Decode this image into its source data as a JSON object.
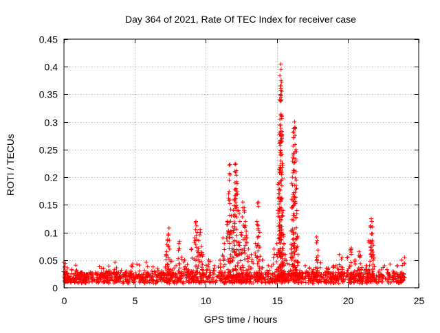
{
  "chart_data": {
    "type": "scatter",
    "title": "Day 364 of 2021, Rate Of TEC Index for receiver case",
    "xlabel": "GPS time / hours",
    "ylabel": "ROTI / TECUs",
    "xlim": [
      0,
      25
    ],
    "ylim": [
      0,
      0.45
    ],
    "xticks": [
      0,
      5,
      10,
      15,
      20,
      25
    ],
    "xtick_labels": [
      "0",
      "5",
      "10",
      "15",
      "20",
      "25"
    ],
    "yticks": [
      0,
      0.05,
      0.1,
      0.15,
      0.2,
      0.25,
      0.3,
      0.35,
      0.4,
      0.45
    ],
    "ytick_labels": [
      "0",
      "0.05",
      "0.1",
      "0.15",
      "0.2",
      "0.25",
      "0.3",
      "0.35",
      "0.4",
      "0.45"
    ],
    "grid": true,
    "marker": "+",
    "color": "#ff0000",
    "series": [
      {
        "name": "ROTI",
        "points": [
          [
            0.0,
            0.046
          ],
          [
            0.05,
            0.038
          ],
          [
            0.1,
            0.044
          ],
          [
            0.15,
            0.03
          ],
          [
            0.2,
            0.026
          ],
          [
            0.3,
            0.02
          ],
          [
            0.5,
            0.015
          ],
          [
            0.8,
            0.022
          ],
          [
            0.9,
            0.032
          ],
          [
            1.2,
            0.028
          ],
          [
            1.5,
            0.018
          ],
          [
            2.0,
            0.016
          ],
          [
            2.4,
            0.024
          ],
          [
            3.0,
            0.03
          ],
          [
            3.2,
            0.022
          ],
          [
            3.6,
            0.046
          ],
          [
            3.7,
            0.036
          ],
          [
            4.0,
            0.028
          ],
          [
            4.4,
            0.03
          ],
          [
            4.8,
            0.022
          ],
          [
            5.3,
            0.02
          ],
          [
            5.8,
            0.046
          ],
          [
            5.9,
            0.038
          ],
          [
            6.2,
            0.03
          ],
          [
            6.6,
            0.035
          ],
          [
            6.9,
            0.03
          ],
          [
            7.2,
            0.06
          ],
          [
            7.25,
            0.078
          ],
          [
            7.3,
            0.085
          ],
          [
            7.35,
            0.095
          ],
          [
            7.4,
            0.108
          ],
          [
            7.45,
            0.07
          ],
          [
            7.6,
            0.048
          ],
          [
            7.9,
            0.04
          ],
          [
            8.1,
            0.08
          ],
          [
            8.15,
            0.084
          ],
          [
            8.3,
            0.055
          ],
          [
            8.5,
            0.05
          ],
          [
            8.7,
            0.042
          ],
          [
            9.0,
            0.07
          ],
          [
            9.2,
            0.09
          ],
          [
            9.3,
            0.12
          ],
          [
            9.35,
            0.112
          ],
          [
            9.4,
            0.1
          ],
          [
            9.5,
            0.085
          ],
          [
            9.6,
            0.105
          ],
          [
            9.7,
            0.075
          ],
          [
            9.8,
            0.06
          ],
          [
            10.2,
            0.05
          ],
          [
            10.6,
            0.04
          ],
          [
            11.0,
            0.05
          ],
          [
            11.2,
            0.09
          ],
          [
            11.3,
            0.08
          ],
          [
            11.5,
            0.12
          ],
          [
            11.6,
            0.17
          ],
          [
            11.65,
            0.222
          ],
          [
            11.7,
            0.223
          ],
          [
            11.8,
            0.13
          ],
          [
            11.9,
            0.11
          ],
          [
            12.0,
            0.16
          ],
          [
            12.05,
            0.19
          ],
          [
            12.1,
            0.224
          ],
          [
            12.15,
            0.212
          ],
          [
            12.2,
            0.175
          ],
          [
            12.3,
            0.14
          ],
          [
            12.4,
            0.12
          ],
          [
            12.5,
            0.1
          ],
          [
            12.6,
            0.155
          ],
          [
            12.7,
            0.145
          ],
          [
            12.8,
            0.12
          ],
          [
            12.9,
            0.09
          ],
          [
            13.0,
            0.07
          ],
          [
            13.2,
            0.06
          ],
          [
            13.5,
            0.08
          ],
          [
            13.6,
            0.12
          ],
          [
            13.65,
            0.153
          ],
          [
            13.7,
            0.155
          ],
          [
            13.8,
            0.1
          ],
          [
            14.0,
            0.05
          ],
          [
            14.4,
            0.04
          ],
          [
            14.8,
            0.07
          ],
          [
            15.0,
            0.08
          ],
          [
            15.1,
            0.14
          ],
          [
            15.15,
            0.19
          ],
          [
            15.2,
            0.28
          ],
          [
            15.22,
            0.305
          ],
          [
            15.25,
            0.35
          ],
          [
            15.28,
            0.405
          ],
          [
            15.3,
            0.395
          ],
          [
            15.32,
            0.34
          ],
          [
            15.35,
            0.31
          ],
          [
            15.4,
            0.225
          ],
          [
            15.45,
            0.14
          ],
          [
            15.5,
            0.08
          ],
          [
            15.6,
            0.06
          ],
          [
            16.0,
            0.07
          ],
          [
            16.05,
            0.16
          ],
          [
            16.1,
            0.2
          ],
          [
            16.15,
            0.24
          ],
          [
            16.2,
            0.282
          ],
          [
            16.25,
            0.3
          ],
          [
            16.3,
            0.288
          ],
          [
            16.35,
            0.25
          ],
          [
            16.4,
            0.18
          ],
          [
            16.5,
            0.06
          ],
          [
            17.0,
            0.04
          ],
          [
            17.5,
            0.03
          ],
          [
            17.8,
            0.092
          ],
          [
            17.85,
            0.085
          ],
          [
            17.9,
            0.068
          ],
          [
            18.1,
            0.045
          ],
          [
            18.5,
            0.035
          ],
          [
            19.0,
            0.04
          ],
          [
            19.4,
            0.06
          ],
          [
            19.6,
            0.055
          ],
          [
            20.0,
            0.055
          ],
          [
            20.2,
            0.068
          ],
          [
            20.25,
            0.072
          ],
          [
            20.5,
            0.05
          ],
          [
            20.8,
            0.065
          ],
          [
            20.9,
            0.058
          ],
          [
            21.3,
            0.04
          ],
          [
            21.5,
            0.085
          ],
          [
            21.6,
            0.112
          ],
          [
            21.65,
            0.125
          ],
          [
            21.7,
            0.12
          ],
          [
            21.75,
            0.11
          ],
          [
            21.8,
            0.06
          ],
          [
            22.2,
            0.03
          ],
          [
            22.8,
            0.028
          ],
          [
            23.2,
            0.03
          ],
          [
            23.5,
            0.04
          ],
          [
            23.8,
            0.05
          ],
          [
            24.0,
            0.055
          ]
        ]
      }
    ]
  }
}
